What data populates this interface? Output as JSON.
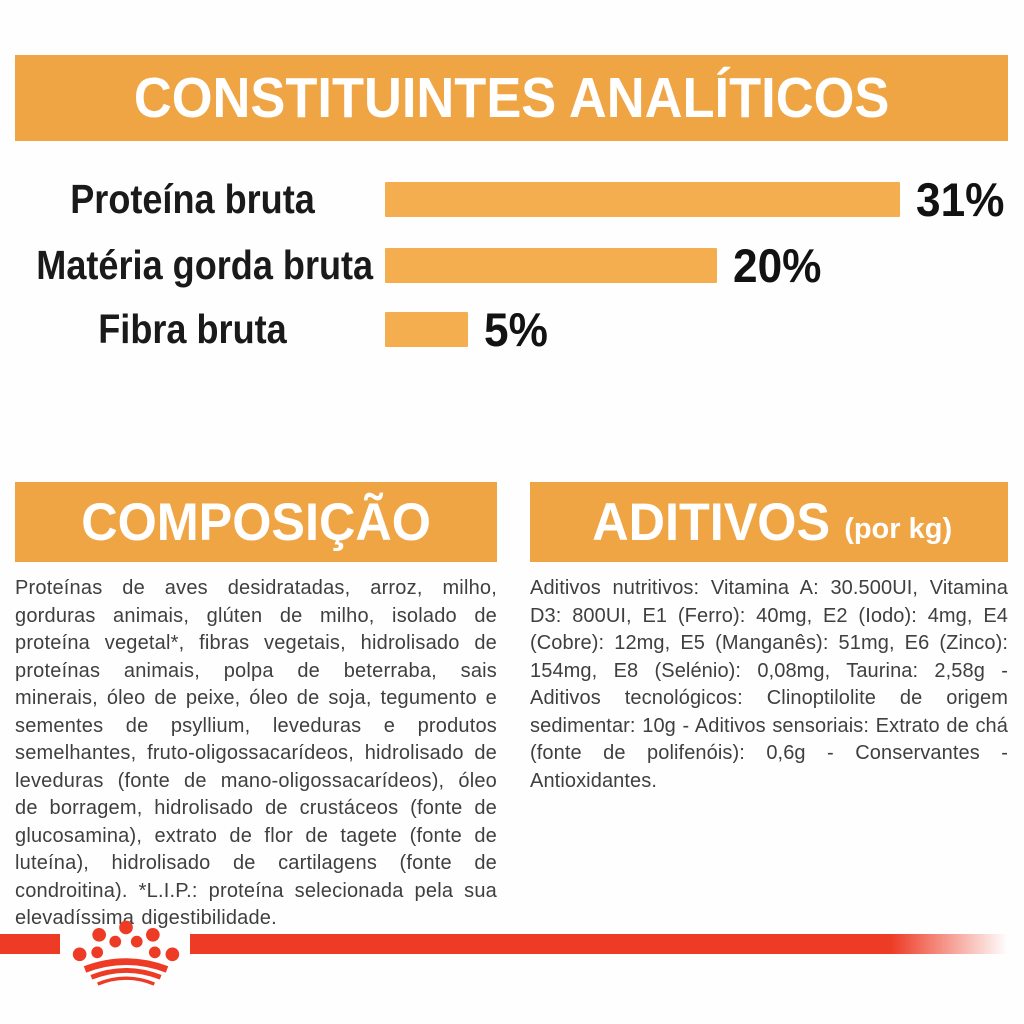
{
  "colors": {
    "banner_orange": "#F0A545",
    "bar_orange": "#F5AE4F",
    "brand_red": "#ED3B25",
    "heading_text": "#FFFFFF",
    "label_text": "#1A1A1A",
    "body_text": "#3F3F3F"
  },
  "analytics": {
    "title": "CONSTITUINTES ANALÍTICOS",
    "rows": [
      {
        "label": "Proteína bruta",
        "value": 31,
        "display": "31%"
      },
      {
        "label": "Matéria gorda bruta",
        "value": 20,
        "display": "20%"
      },
      {
        "label": "Fibra bruta",
        "value": 5,
        "display": "5%"
      }
    ]
  },
  "chart_data": {
    "type": "bar",
    "orientation": "horizontal",
    "title": "CONSTITUINTES ANALÍTICOS",
    "categories": [
      "Proteína bruta",
      "Matéria gorda bruta",
      "Fibra bruta"
    ],
    "values": [
      31,
      20,
      5
    ],
    "unit": "%",
    "data_labels": [
      "31%",
      "20%",
      "5%"
    ],
    "xlim": [
      0,
      35
    ],
    "bar_color": "#F5AE4F",
    "grid": false,
    "legend": false
  },
  "composition": {
    "title": "COMPOSIÇÃO",
    "body": "Proteínas de aves desidratadas, arroz, milho, gorduras animais, glúten de milho, isolado de proteína vegetal*, fibras vegetais, hidrolisado de proteínas animais, polpa de beterraba, sais minerais, óleo de peixe, óleo de soja, tegumento e sementes de psyllium, leveduras e produtos semelhantes, fruto-oligossacarídeos, hidrolisado de leveduras (fonte de mano-oligossacarídeos), óleo de borragem, hidrolisado de crustáceos (fonte de glucosamina), extrato de flor de tagete (fonte de luteína), hidrolisado de cartilagens (fonte de condroitina). *L.I.P.: proteína selecionada pela sua elevadíssima digestibilidade."
  },
  "additives": {
    "title": "ADITIVOS",
    "subtitle": "(por kg)",
    "body": "Aditivos nutritivos: Vitamina A: 30.500UI, Vitamina D3: 800UI, E1 (Ferro): 40mg, E2 (Iodo): 4mg, E4 (Cobre): 12mg, E5 (Manganês): 51mg, E6 (Zinco): 154mg, E8 (Selénio): 0,08mg, Taurina: 2,58g - Aditivos tecnológicos: Clinoptilolite de origem sedimentar: 10g - Aditivos sensoriais: Extrato de chá (fonte de polifenóis): 0,6g - Conservantes - Antioxidantes."
  },
  "brand": {
    "logo": "royal-canin-crown"
  }
}
